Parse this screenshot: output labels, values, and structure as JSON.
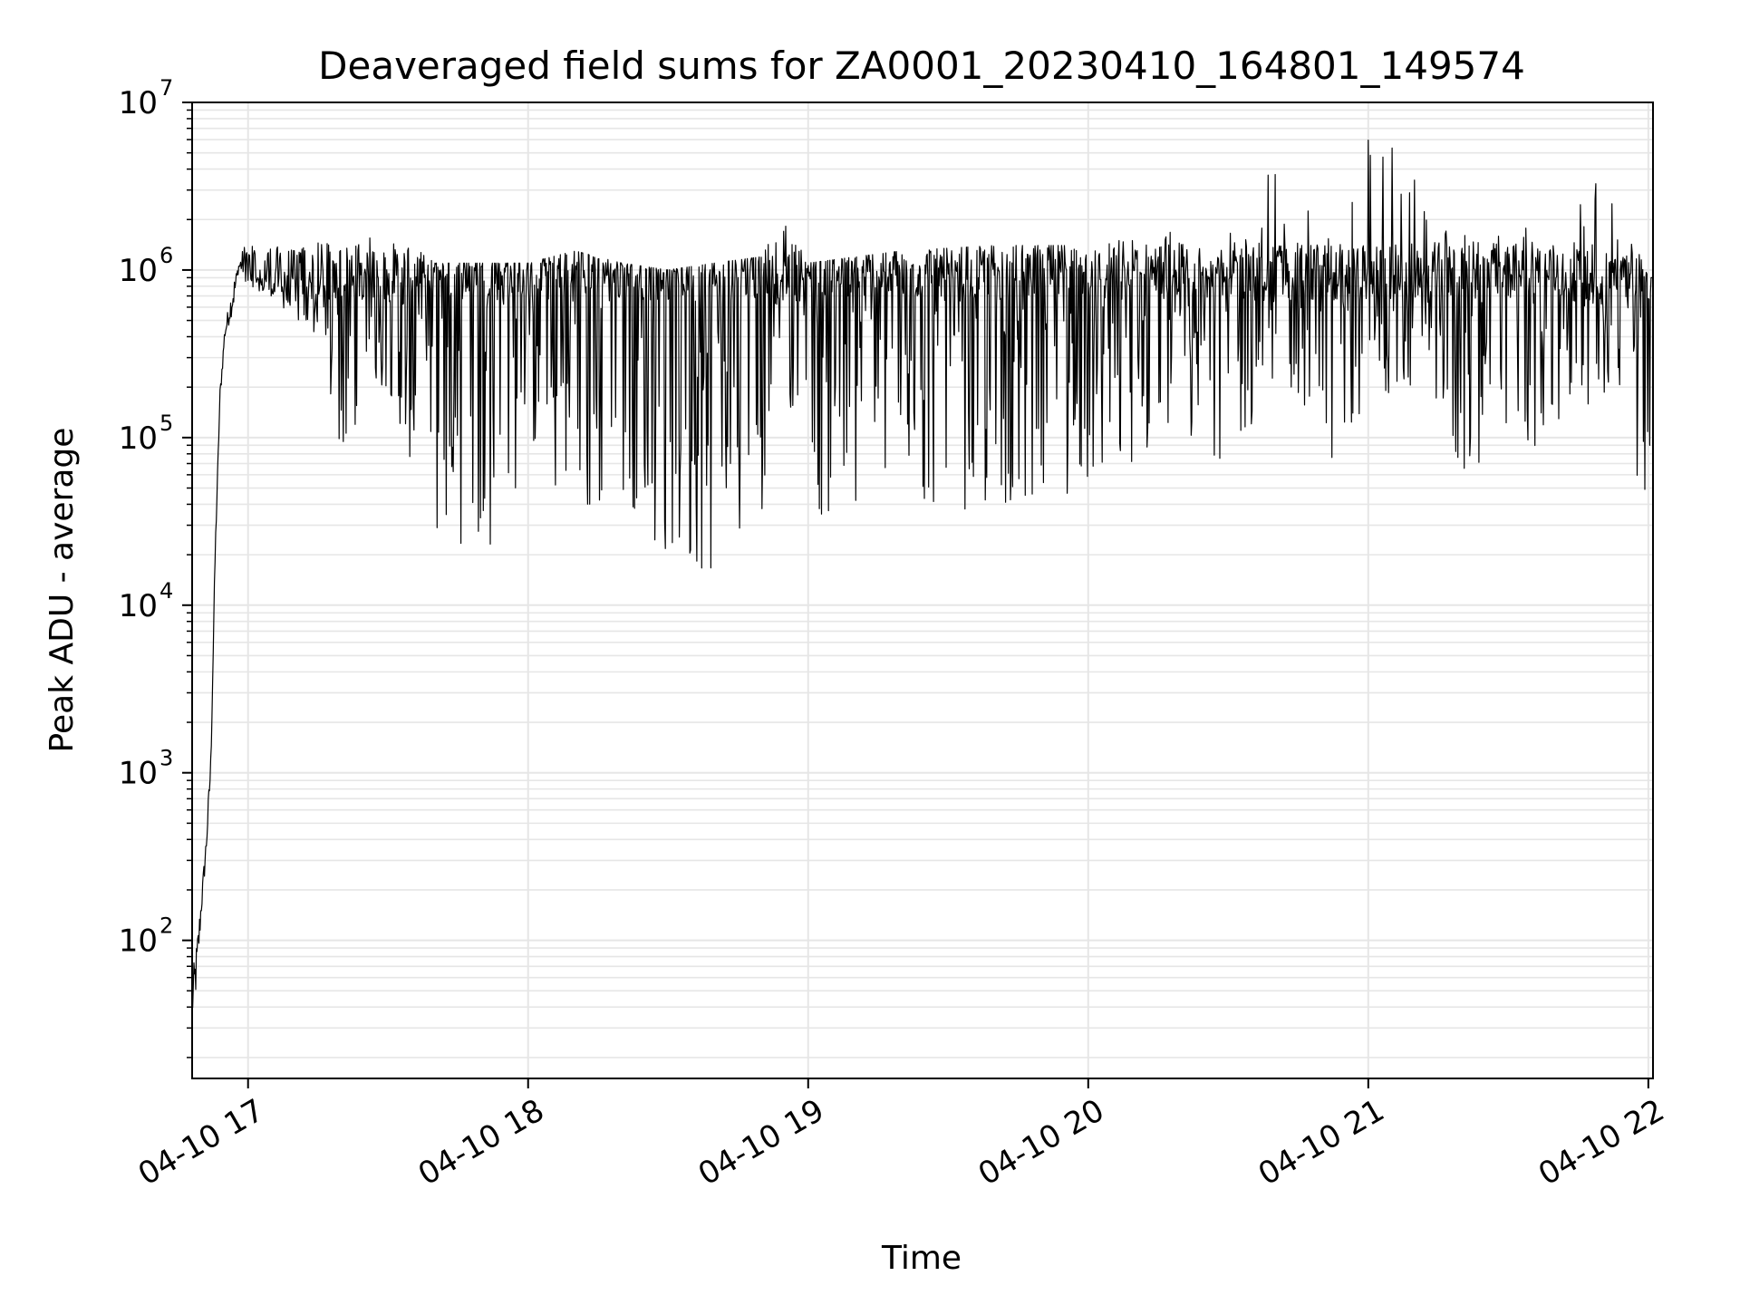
{
  "chart_data": {
    "type": "line",
    "title": "Deaveraged field sums for ZA0001_20230410_164801_149574",
    "xlabel": "Time",
    "ylabel": "Peak ADU - average",
    "yscale": "log",
    "ylim": [
      15,
      10000000
    ],
    "xlim": [
      "2023-04-10 16:48:01",
      "2023-04-10 22:01:00"
    ],
    "grid": true,
    "legend": "none",
    "line_color": "#000000",
    "grid_color": "#e6e6e6",
    "x_ticks": [
      {
        "value": "2023-04-10 17:00",
        "label": "04-10 17"
      },
      {
        "value": "2023-04-10 18:00",
        "label": "04-10 18"
      },
      {
        "value": "2023-04-10 19:00",
        "label": "04-10 19"
      },
      {
        "value": "2023-04-10 20:00",
        "label": "04-10 20"
      },
      {
        "value": "2023-04-10 21:00",
        "label": "04-10 21"
      },
      {
        "value": "2023-04-10 22:00",
        "label": "04-10 22"
      }
    ],
    "y_ticks": [
      {
        "value": 100,
        "base": "10",
        "exp": "2"
      },
      {
        "value": 1000,
        "base": "10",
        "exp": "3"
      },
      {
        "value": 10000,
        "base": "10",
        "exp": "4"
      },
      {
        "value": 100000,
        "base": "10",
        "exp": "5"
      },
      {
        "value": 1000000,
        "base": "10",
        "exp": "6"
      },
      {
        "value": 10000000,
        "base": "10",
        "exp": "7"
      }
    ],
    "series": [
      {
        "x": [
          "2023-04-10 16:48",
          "2023-04-10 16:49",
          "2023-04-10 16:50",
          "2023-04-10 16:51",
          "2023-04-10 16:52",
          "2023-04-10 16:53",
          "2023-04-10 16:54",
          "2023-04-10 16:55",
          "2023-04-10 16:56",
          "2023-04-10 16:57",
          "2023-04-10 16:58",
          "2023-04-10 17:00",
          "2023-04-10 17:05",
          "2023-04-10 17:10",
          "2023-04-10 17:14",
          "2023-04-10 17:20",
          "2023-04-10 17:30",
          "2023-04-10 17:40",
          "2023-04-10 17:50",
          "2023-04-10 17:55",
          "2023-04-10 18:00",
          "2023-04-10 18:10",
          "2023-04-10 18:20",
          "2023-04-10 18:30",
          "2023-04-10 18:40",
          "2023-04-10 18:50",
          "2023-04-10 18:53",
          "2023-04-10 19:00",
          "2023-04-10 19:20",
          "2023-04-10 19:40",
          "2023-04-10 20:00",
          "2023-04-10 20:20",
          "2023-04-10 20:30",
          "2023-04-10 20:40",
          "2023-04-10 20:55",
          "2023-04-10 21:00",
          "2023-04-10 21:12",
          "2023-04-10 21:20",
          "2023-04-10 21:40",
          "2023-04-10 21:50",
          "2023-04-10 22:00"
        ],
        "high": [
          60,
          100,
          190,
          420,
          1300,
          25000,
          200000,
          460000,
          650000,
          900000,
          1100000,
          1700000,
          1400000,
          1300000,
          2000000,
          1300000,
          1800000,
          1100000,
          1100000,
          1100000,
          1100000,
          1300000,
          1100000,
          1000000,
          1100000,
          1200000,
          2500000,
          1100000,
          1300000,
          1400000,
          1400000,
          1800000,
          2000000,
          4800000,
          1900000,
          7000000,
          4300000,
          1600000,
          2000000,
          4600000,
          900000
        ],
        "low": [
          30,
          50,
          140,
          300,
          900,
          20000,
          160000,
          380000,
          480000,
          600000,
          1000000,
          800000,
          700000,
          500000,
          400000,
          75000,
          200000,
          23000,
          22000,
          25000,
          100000,
          25000,
          50000,
          17000,
          15000,
          30000,
          500000,
          32000,
          40000,
          35000,
          50000,
          100000,
          70000,
          200000,
          60000,
          180000,
          170000,
          60000,
          100000,
          180000,
          40000
        ]
      }
    ]
  }
}
